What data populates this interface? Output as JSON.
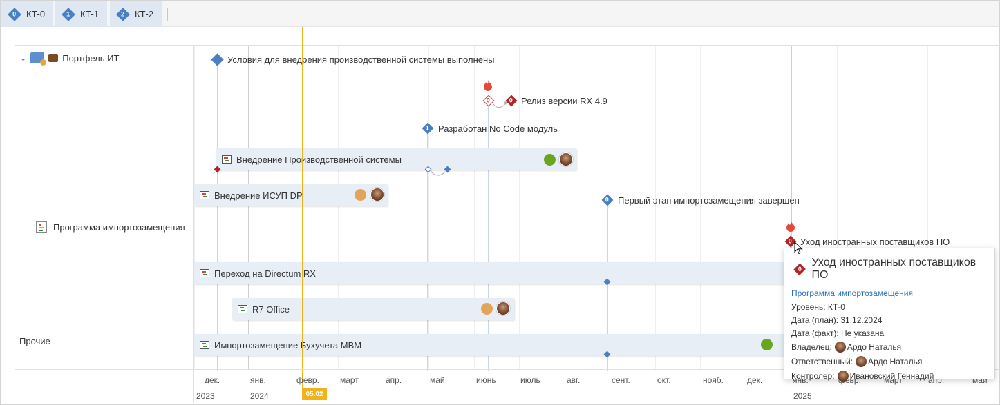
{
  "tabs": [
    {
      "num": "0",
      "label": "КТ-0"
    },
    {
      "num": "1",
      "label": "КТ-1"
    },
    {
      "num": "2",
      "label": "КТ-2"
    }
  ],
  "groups": {
    "portfolio": {
      "label": "Портфель ИТ"
    },
    "program": {
      "label": "Программа импортозамещения"
    },
    "other": {
      "label": "Прочие"
    }
  },
  "bars": {
    "prod_system": {
      "label": "Внедрение Производственной системы",
      "status_color": "#6aa51e"
    },
    "isup": {
      "label": "Внедрение ИСУП DP",
      "status_color": "#e0a55a"
    },
    "directum": {
      "label": "Переход на Directum RX"
    },
    "r7": {
      "label": "R7 Office",
      "status_color": "#e0a55a"
    },
    "mvm": {
      "label": "Импортозамещение Бухучета МВМ",
      "status_color": "#6aa51e"
    }
  },
  "milestones": {
    "conditions": {
      "num": "",
      "label": "Условия для внедрения производственной системы выполнены"
    },
    "release": {
      "num": "0",
      "label": "Релиз версии RX 4.9"
    },
    "nocode": {
      "num": "1",
      "label": "Разработан No Code модуль"
    },
    "first_stage": {
      "num": "0",
      "label": "Первый этап импортозамещения завершен"
    },
    "vendors": {
      "num": "0",
      "label": "Уход иностранных поставщиков ПО"
    }
  },
  "timeline": {
    "months": [
      "дек.",
      "янв.",
      "февр.",
      "март",
      "апр.",
      "май",
      "июнь",
      "июль",
      "авг.",
      "сент.",
      "окт.",
      "нояб.",
      "дек.",
      "янв.",
      "февр.",
      "март",
      "апр.",
      "май"
    ],
    "years": [
      "2023",
      "2024",
      "2025"
    ],
    "today": "05.02"
  },
  "tooltip": {
    "num": "0",
    "title": "Уход иностранных поставщиков ПО",
    "link": "Программа импортозамещения",
    "level": "Уровень: КТ-0",
    "plan_date": "Дата (план): 31.12.2024",
    "fact_date": "Дата (факт): Не указана",
    "owner_label": "Владелец:",
    "owner": "Ардо Наталья",
    "responsible_label": "Ответственный:",
    "responsible": "Ардо Наталья",
    "controller_label": "Контролер:",
    "controller": "Ивановский Геннадий"
  }
}
